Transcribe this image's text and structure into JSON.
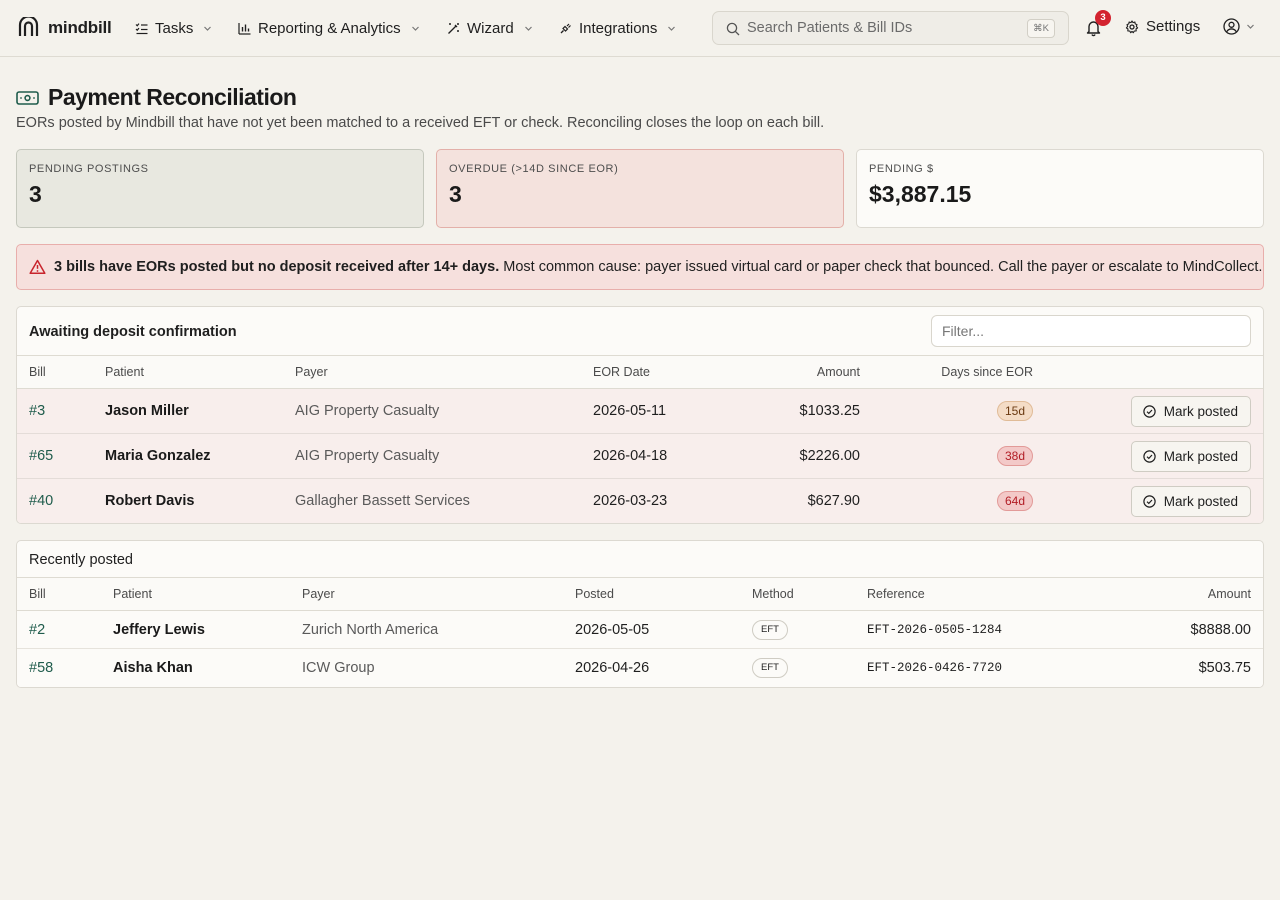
{
  "nav": {
    "brand": "mindbill",
    "items": [
      {
        "label": "Tasks"
      },
      {
        "label": "Reporting & Analytics"
      },
      {
        "label": "Wizard"
      },
      {
        "label": "Integrations"
      }
    ],
    "search_placeholder": "Search Patients & Bill IDs",
    "search_shortcut": "⌘K",
    "notification_count": "3",
    "settings_label": "Settings"
  },
  "page": {
    "title": "Payment Reconciliation",
    "subtitle": "EORs posted by Mindbill that have not yet been matched to a received EFT or check. Reconciling closes the loop on each bill."
  },
  "stats": [
    {
      "label": "Pending postings",
      "value": "3"
    },
    {
      "label": "Overdue (>14d since EOR)",
      "value": "3"
    },
    {
      "label": "Pending $",
      "value": "$3,887.15"
    }
  ],
  "alert": {
    "bold": "3 bills have EORs posted but no deposit received after 14+ days.",
    "text": " Most common cause: payer issued virtual card or paper check that bounced. Call the payer or escalate to MindCollect."
  },
  "awaiting": {
    "title": "Awaiting deposit confirmation",
    "filter_placeholder": "Filter...",
    "columns": {
      "bill": "Bill",
      "patient": "Patient",
      "payer": "Payer",
      "eor_date": "EOR Date",
      "amount": "Amount",
      "days": "Days since EOR"
    },
    "action_label": "Mark posted",
    "rows": [
      {
        "bill": "#3",
        "patient": "Jason Miller",
        "payer": "AIG Property Casualty",
        "eor_date": "2026-05-11",
        "amount": "$1033.25",
        "days": "15d"
      },
      {
        "bill": "#65",
        "patient": "Maria Gonzalez",
        "payer": "AIG Property Casualty",
        "eor_date": "2026-04-18",
        "amount": "$2226.00",
        "days": "38d"
      },
      {
        "bill": "#40",
        "patient": "Robert Davis",
        "payer": "Gallagher Bassett Services",
        "eor_date": "2026-03-23",
        "amount": "$627.90",
        "days": "64d"
      }
    ]
  },
  "recent": {
    "title": "Recently posted",
    "columns": {
      "bill": "Bill",
      "patient": "Patient",
      "payer": "Payer",
      "posted": "Posted",
      "method": "Method",
      "reference": "Reference",
      "amount": "Amount"
    },
    "rows": [
      {
        "bill": "#2",
        "patient": "Jeffery Lewis",
        "payer": "Zurich North America",
        "posted": "2026-05-05",
        "method": "EFT",
        "reference": "EFT-2026-0505-1284",
        "amount": "$8888.00"
      },
      {
        "bill": "#58",
        "patient": "Aisha Khan",
        "payer": "ICW Group",
        "posted": "2026-04-26",
        "method": "EFT",
        "reference": "EFT-2026-0426-7720",
        "amount": "$503.75"
      }
    ]
  },
  "colors": {
    "background": "#f4f2ec",
    "accent_green": "#1f5c4c",
    "alert_red": "#d3232f",
    "overdue_bg": "#f4e2dd"
  }
}
